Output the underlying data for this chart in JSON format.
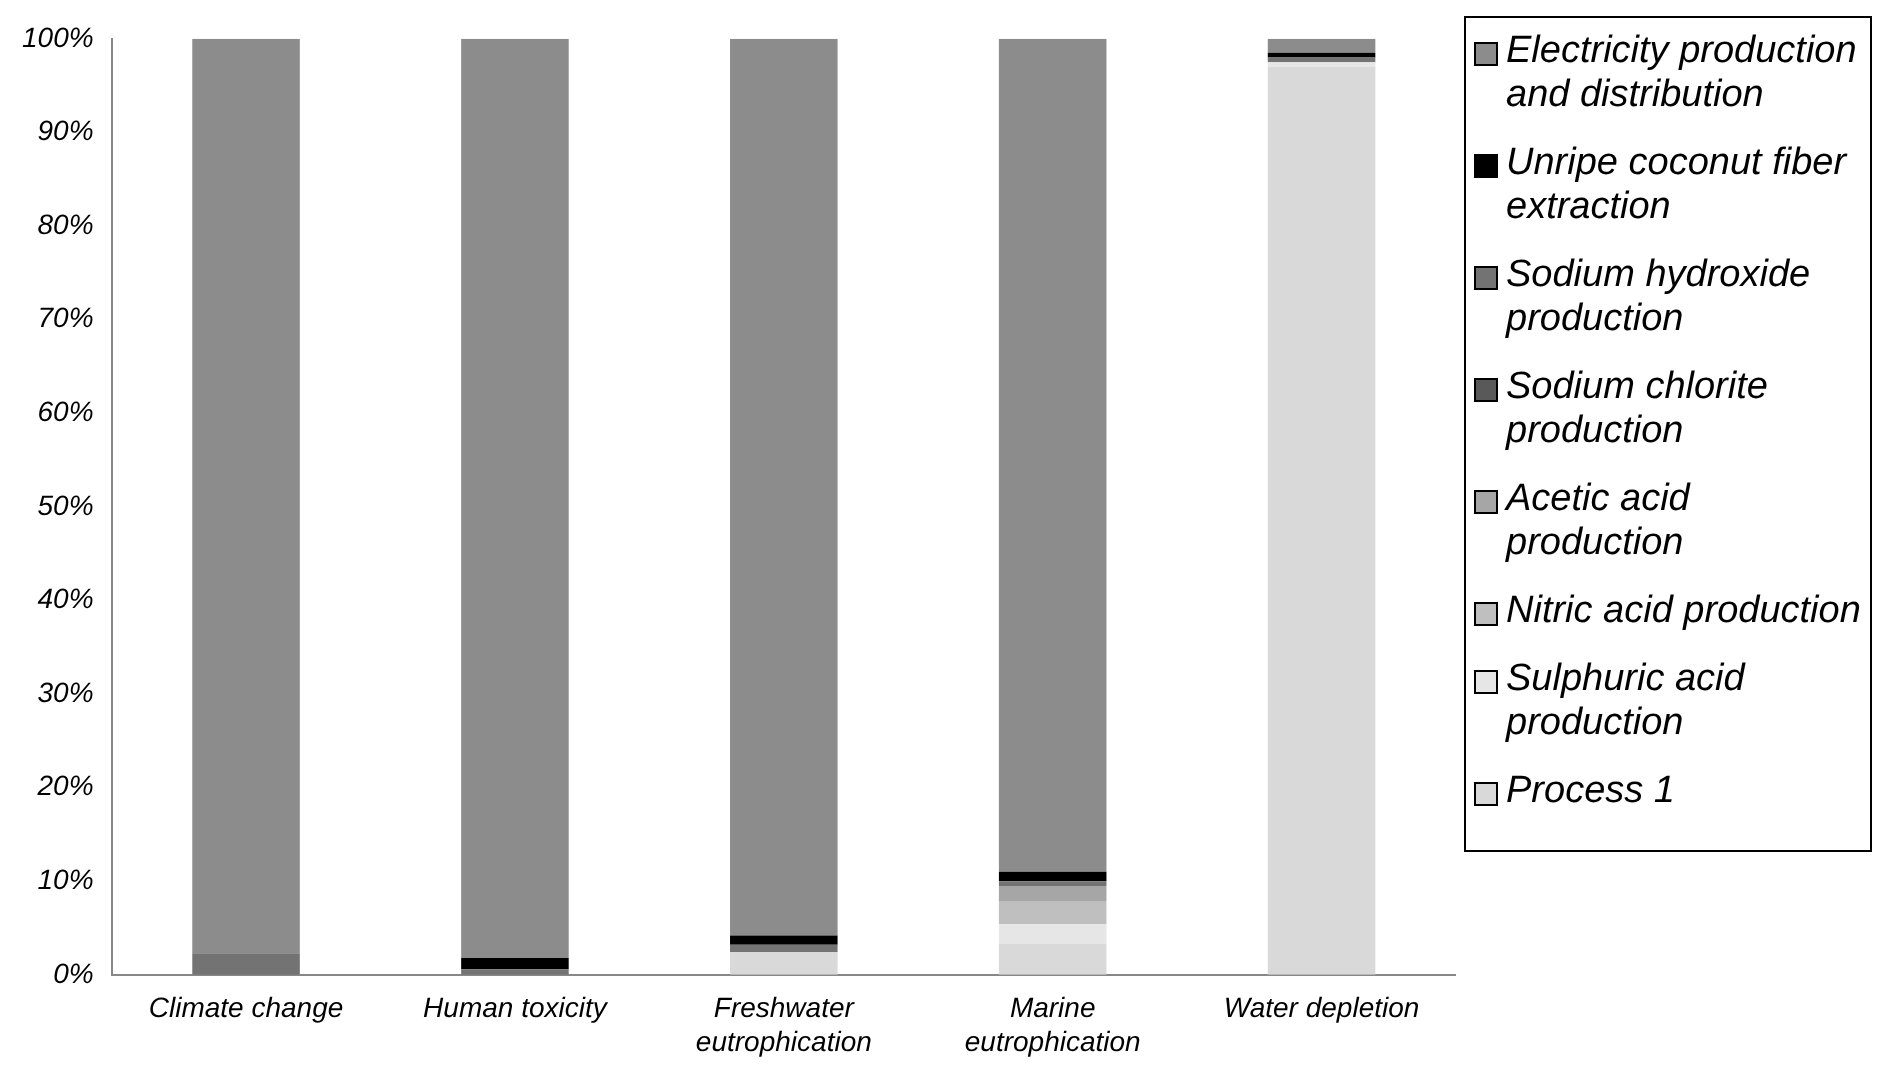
{
  "chart_data": {
    "type": "bar",
    "stacked": true,
    "categories": [
      "Climate change",
      "Human toxicity",
      "Freshwater eutrophication",
      "Marine eutrophication",
      "Water depletion"
    ],
    "series": [
      {
        "name": "Process 1",
        "color": "#d9d9d9",
        "values": [
          0,
          0,
          2.4,
          3.3,
          97.0
        ]
      },
      {
        "name": "Sulphuric acid production",
        "color": "#e6e6e6",
        "values": [
          0,
          0,
          0,
          2.1,
          0.5
        ]
      },
      {
        "name": "Nitric acid production",
        "color": "#bfbfbf",
        "values": [
          0,
          0,
          0,
          2.4,
          0
        ]
      },
      {
        "name": "Acetic acid production",
        "color": "#a6a6a6",
        "values": [
          0,
          0,
          0,
          1.7,
          0
        ]
      },
      {
        "name": "Sodium chlorite production",
        "color": "#595959",
        "values": [
          0,
          0,
          0,
          0,
          0
        ]
      },
      {
        "name": "Sodium hydroxide production",
        "color": "#737373",
        "values": [
          2.3,
          0.6,
          0.8,
          0.5,
          0.5
        ]
      },
      {
        "name": "Unripe coconut fiber extraction",
        "color": "#000000",
        "values": [
          0,
          1.2,
          1.0,
          1.0,
          0.5
        ]
      },
      {
        "name": "Electricity production and distribution",
        "color": "#8c8c8c",
        "values": [
          97.7,
          98.2,
          95.8,
          89.0,
          1.5
        ]
      }
    ],
    "ylim": [
      0,
      100
    ],
    "yticks": [
      {
        "value": 0,
        "label": "0%"
      },
      {
        "value": 10,
        "label": "10%"
      },
      {
        "value": 20,
        "label": "20%"
      },
      {
        "value": 30,
        "label": "30%"
      },
      {
        "value": 40,
        "label": "40%"
      },
      {
        "value": 50,
        "label": "50%"
      },
      {
        "value": 60,
        "label": "60%"
      },
      {
        "value": 70,
        "label": "70%"
      },
      {
        "value": 80,
        "label": "80%"
      },
      {
        "value": 90,
        "label": "90%"
      },
      {
        "value": 100,
        "label": "100%"
      }
    ],
    "grid": false,
    "legend": "right"
  }
}
